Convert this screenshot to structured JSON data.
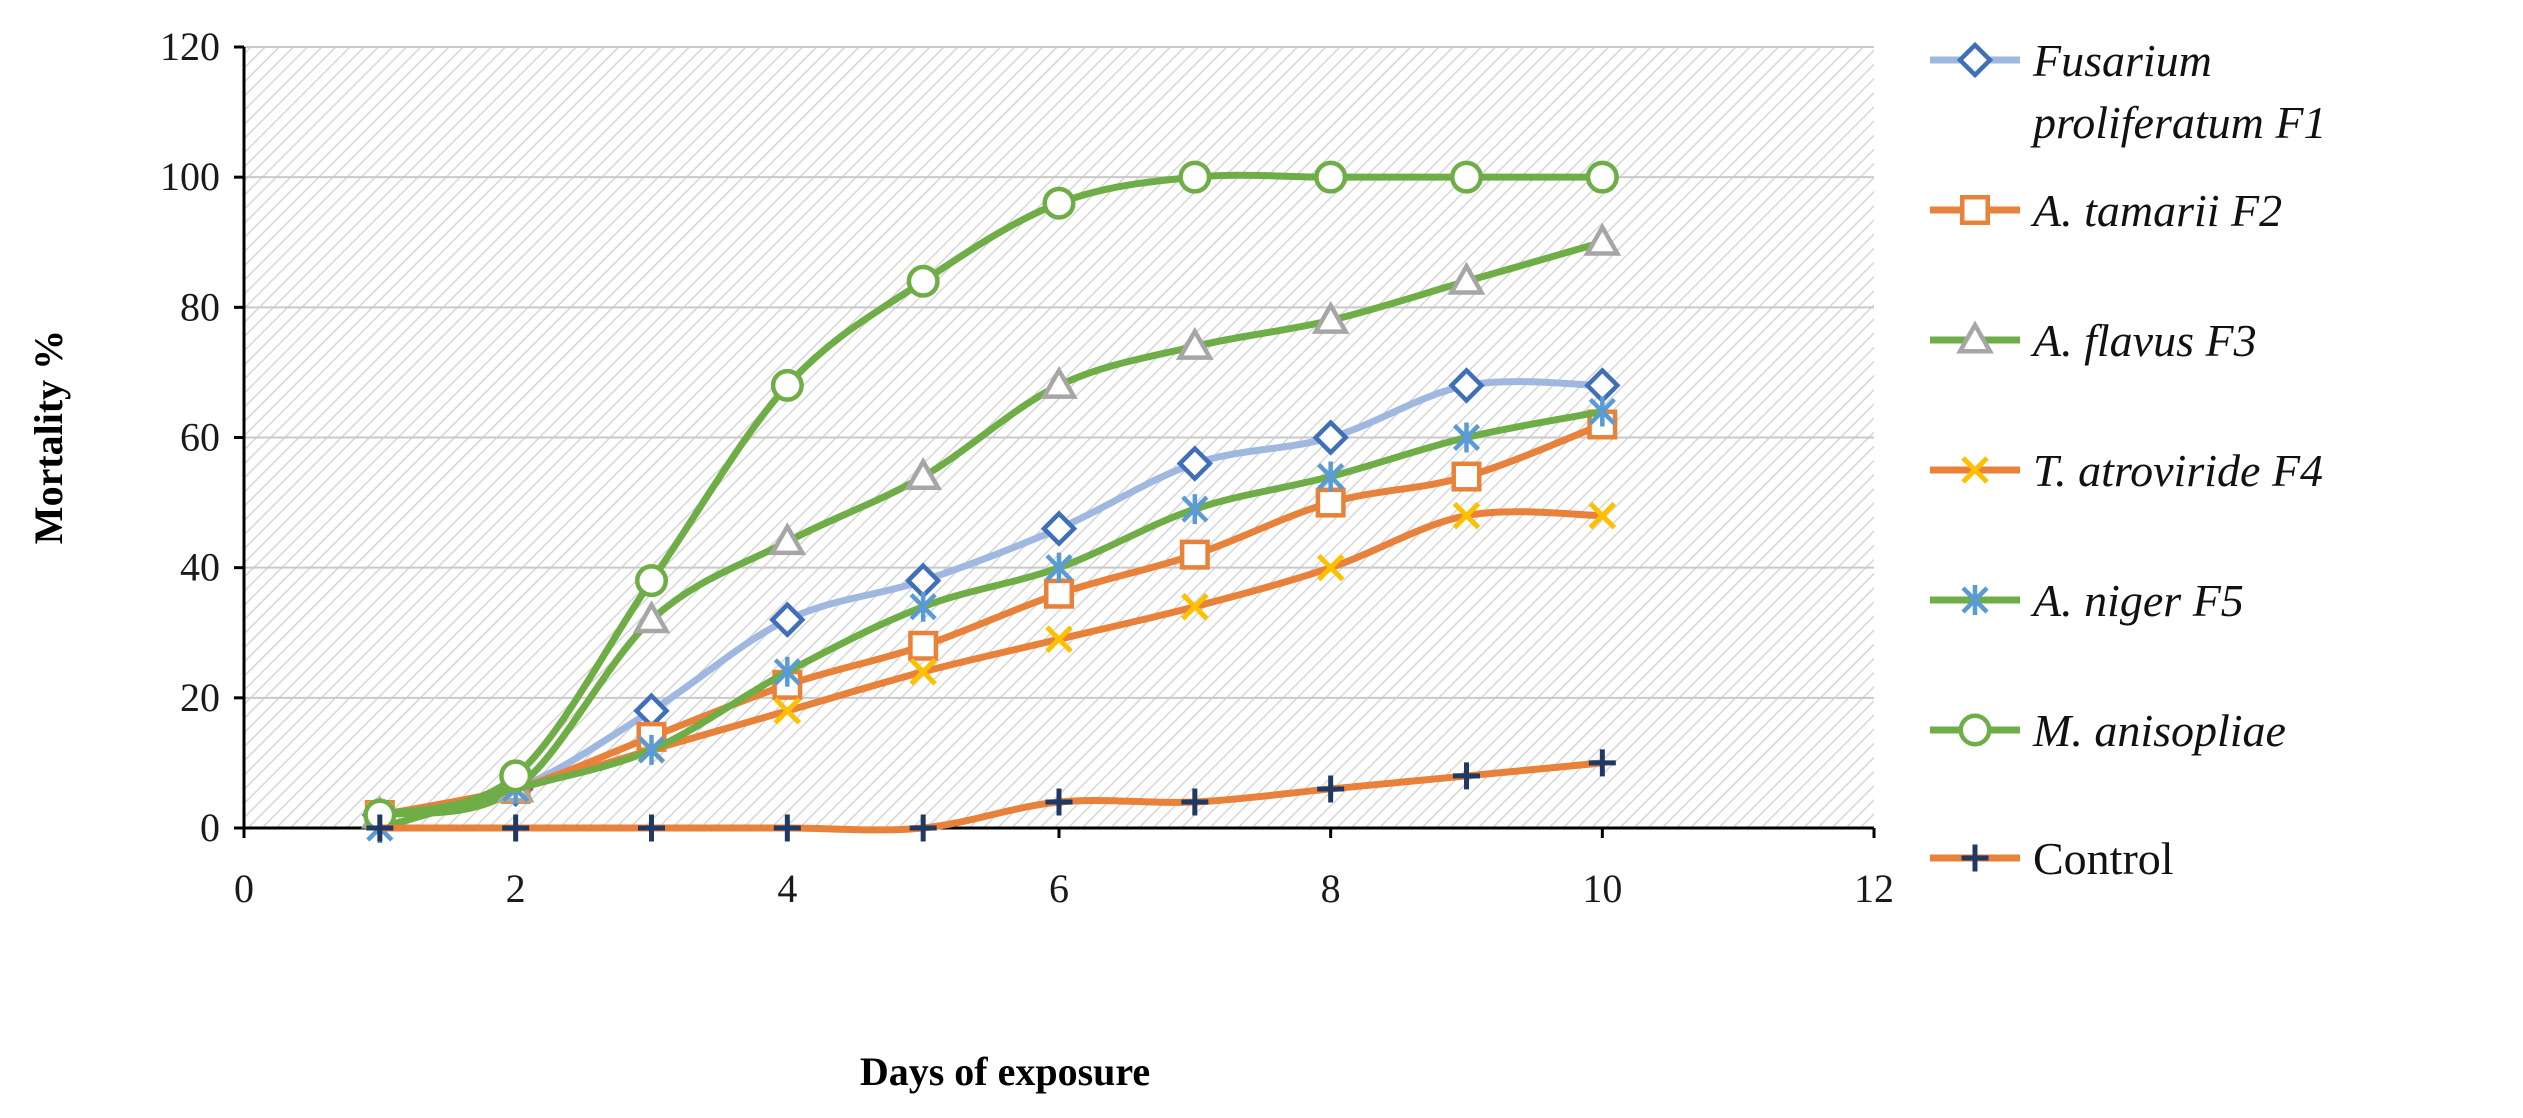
{
  "chart_data": {
    "type": "line",
    "title": "",
    "xlabel": "Days of exposure",
    "ylabel": "Mortality %",
    "xlim": [
      0,
      12
    ],
    "ylim": [
      0,
      120
    ],
    "xticks": [
      0,
      2,
      4,
      6,
      8,
      10,
      12
    ],
    "yticks": [
      0,
      20,
      40,
      60,
      80,
      100,
      120
    ],
    "x": [
      1,
      2,
      3,
      4,
      5,
      6,
      7,
      8,
      9,
      10
    ],
    "grid": "horizontal",
    "legend_position": "right",
    "series": [
      {
        "name": "Fusarium proliferatum F1",
        "legend_lines": [
          "Fusarium",
          "proliferatum F1"
        ],
        "italic": true,
        "line_color": "#9fb8e0",
        "marker": "diamond",
        "marker_color": "#3f6fb8",
        "values": [
          2,
          6,
          18,
          32,
          38,
          46,
          56,
          60,
          68,
          68
        ]
      },
      {
        "name": "A. tamarii F2",
        "legend_lines": [
          "A. tamarii F2"
        ],
        "italic": true,
        "line_color": "#e8813a",
        "marker": "square",
        "marker_color": "#e8813a",
        "values": [
          2,
          6,
          14,
          22,
          28,
          36,
          42,
          50,
          54,
          62
        ]
      },
      {
        "name": "A. flavus F3",
        "legend_lines": [
          "A. flavus F3"
        ],
        "italic": true,
        "line_color": "#6fad47",
        "marker": "triangle",
        "marker_color": "#a6a6a6",
        "values": [
          2,
          6,
          32,
          44,
          54,
          68,
          74,
          78,
          84,
          90
        ]
      },
      {
        "name": "T. atroviride F4",
        "legend_lines": [
          "T. atroviride F4"
        ],
        "italic": true,
        "line_color": "#e8813a",
        "marker": "x",
        "marker_color": "#ffc000",
        "values": [
          2,
          6,
          12,
          18,
          24,
          29,
          34,
          40,
          48,
          48
        ]
      },
      {
        "name": "A. niger F5",
        "legend_lines": [
          "A. niger F5"
        ],
        "italic": true,
        "line_color": "#6fad47",
        "marker": "asterisk",
        "marker_color": "#5b9bd5",
        "values": [
          0,
          6,
          12,
          24,
          34,
          40,
          49,
          54,
          60,
          64
        ]
      },
      {
        "name": "M. anisopliae",
        "legend_lines": [
          "M. anisopliae"
        ],
        "italic": true,
        "line_color": "#6fad47",
        "marker": "circle",
        "marker_color": "#6fad47",
        "values": [
          2,
          8,
          38,
          68,
          84,
          96,
          100,
          100,
          100,
          100
        ]
      },
      {
        "name": "Control",
        "legend_lines": [
          "Control"
        ],
        "italic": false,
        "line_color": "#e8813a",
        "marker": "plus",
        "marker_color": "#1f3864",
        "values": [
          0,
          0,
          0,
          0,
          0,
          4,
          4,
          6,
          8,
          10
        ]
      }
    ]
  }
}
